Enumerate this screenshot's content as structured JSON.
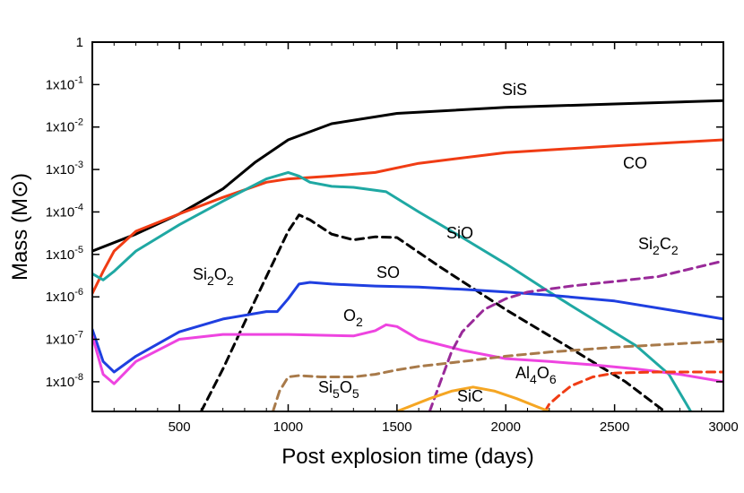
{
  "chart_data": {
    "type": "line",
    "xlabel": "Post explosion time (days)",
    "ylabel": "Mass (M⊙)",
    "xlim": [
      100,
      3000
    ],
    "ylim": [
      2e-09,
      1
    ],
    "yscale": "log",
    "grid": false,
    "x_ticks": [
      500,
      1000,
      1500,
      2000,
      2500,
      3000
    ],
    "x_tick_labels": [
      "500",
      "1000",
      "1500",
      "2000",
      "2500",
      "3000"
    ],
    "y_ticks": [
      1e-08,
      1e-07,
      1e-06,
      1e-05,
      0.0001,
      0.001,
      0.01,
      0.1,
      1
    ],
    "y_tick_labels": [
      {
        "base": "1x10",
        "exp": "-8"
      },
      {
        "base": "1x10",
        "exp": "-7"
      },
      {
        "base": "1x10",
        "exp": "-6"
      },
      {
        "base": "1x10",
        "exp": "-5"
      },
      {
        "base": "1x10",
        "exp": "-4"
      },
      {
        "base": "1x10",
        "exp": "-3"
      },
      {
        "base": "1x10",
        "exp": "-2"
      },
      {
        "base": "1x10",
        "exp": "-1"
      },
      {
        "base": "1",
        "exp": ""
      }
    ],
    "series": [
      {
        "name": "SiS",
        "color": "#000000",
        "dash": false,
        "label": [
          {
            "t": "SiS"
          }
        ],
        "x": [
          100,
          300,
          500,
          700,
          850,
          1000,
          1200,
          1500,
          2000,
          2500,
          3000
        ],
        "y": [
          1.2e-05,
          3e-05,
          9e-05,
          0.00035,
          0.0015,
          0.005,
          0.012,
          0.021,
          0.029,
          0.035,
          0.042
        ]
      },
      {
        "name": "CO",
        "color": "#f03c14",
        "dash": false,
        "label": [
          {
            "t": "CO"
          }
        ],
        "x": [
          100,
          150,
          200,
          300,
          500,
          700,
          900,
          1000,
          1200,
          1400,
          1600,
          2000,
          2500,
          3000
        ],
        "y": [
          1.2e-06,
          4e-06,
          1.2e-05,
          3.5e-05,
          9e-05,
          0.00022,
          0.0005,
          0.0006,
          0.0007,
          0.00085,
          0.0014,
          0.0025,
          0.0036,
          0.005
        ]
      },
      {
        "name": "SiO",
        "color": "#1fa8a3",
        "dash": false,
        "label": [
          {
            "t": "SiO"
          }
        ],
        "x": [
          100,
          150,
          200,
          300,
          500,
          700,
          900,
          1000,
          1050,
          1100,
          1200,
          1300,
          1450,
          1600,
          1800,
          2000,
          2200,
          2400,
          2600,
          2750,
          2850
        ],
        "y": [
          3.5e-06,
          2.5e-06,
          4e-06,
          1.2e-05,
          5e-05,
          0.00018,
          0.0006,
          0.00085,
          0.0007,
          0.0005,
          0.0004,
          0.00038,
          0.0003,
          0.0001,
          2.5e-05,
          6e-06,
          1.3e-06,
          3e-07,
          7e-08,
          1.5e-08,
          2e-09
        ]
      },
      {
        "name": "Si2O2",
        "color": "#000000",
        "dash": true,
        "label": [
          {
            "t": "Si"
          },
          {
            "t": "2",
            "sub": true
          },
          {
            "t": "O"
          },
          {
            "t": "2",
            "sub": true
          }
        ],
        "x": [
          600,
          700,
          800,
          900,
          1000,
          1050,
          1100,
          1200,
          1300,
          1400,
          1500,
          1700,
          2000,
          2300,
          2550,
          2730
        ],
        "y": [
          2e-09,
          2e-08,
          2.5e-07,
          3e-06,
          3.5e-05,
          8.5e-05,
          6.5e-05,
          3e-05,
          2.2e-05,
          2.6e-05,
          2.5e-05,
          5e-06,
          5e-07,
          6e-08,
          1e-08,
          2e-09
        ]
      },
      {
        "name": "SO",
        "color": "#1f3fe0",
        "dash": false,
        "label": [
          {
            "t": "SO"
          }
        ],
        "x": [
          100,
          150,
          200,
          300,
          500,
          700,
          900,
          950,
          1000,
          1050,
          1100,
          1200,
          1400,
          1600,
          1800,
          2000,
          2200,
          2500,
          2800,
          3000
        ],
        "y": [
          1.7e-07,
          3e-08,
          1.7e-08,
          4e-08,
          1.5e-07,
          3e-07,
          4.5e-07,
          4.5e-07,
          9e-07,
          2e-06,
          2.2e-06,
          2e-06,
          1.8e-06,
          1.7e-06,
          1.5e-06,
          1.3e-06,
          1.1e-06,
          8e-07,
          4.5e-07,
          3e-07
        ]
      },
      {
        "name": "O2",
        "color": "#ee44e0",
        "dash": false,
        "label": [
          {
            "t": "O"
          },
          {
            "t": "2",
            "sub": true
          }
        ],
        "x": [
          100,
          150,
          200,
          300,
          500,
          700,
          1000,
          1300,
          1400,
          1450,
          1500,
          1600,
          1800,
          2000,
          2200,
          2400,
          2600,
          2800,
          3000
        ],
        "y": [
          1.2e-07,
          1.5e-08,
          9e-09,
          3e-08,
          1e-07,
          1.3e-07,
          1.3e-07,
          1.2e-07,
          1.6e-07,
          2.2e-07,
          2e-07,
          1e-07,
          5.5e-08,
          3.5e-08,
          3e-08,
          2.5e-08,
          2e-08,
          1.5e-08,
          1e-08
        ]
      },
      {
        "name": "Si2C2",
        "color": "#992a99",
        "dash": true,
        "label": [
          {
            "t": "Si"
          },
          {
            "t": "2",
            "sub": true
          },
          {
            "t": "C"
          },
          {
            "t": "2",
            "sub": true
          }
        ],
        "x": [
          1650,
          1700,
          1750,
          1800,
          1900,
          2000,
          2100,
          2300,
          2500,
          2700,
          3000
        ],
        "y": [
          2e-09,
          1e-08,
          5e-08,
          1.5e-07,
          5e-07,
          9e-07,
          1.3e-06,
          1.8e-06,
          2.3e-06,
          3e-06,
          7e-06
        ]
      },
      {
        "name": "Si5O5",
        "color": "#a87a4a",
        "dash": true,
        "label": [
          {
            "t": "Si"
          },
          {
            "t": "5",
            "sub": true
          },
          {
            "t": "O"
          },
          {
            "t": "5",
            "sub": true
          }
        ],
        "x": [
          930,
          960,
          1000,
          1050,
          1150,
          1300,
          1400,
          1500,
          1600,
          1800,
          2000,
          2200,
          2500,
          3000
        ],
        "y": [
          2e-09,
          6e-09,
          1.3e-08,
          1.4e-08,
          1.3e-08,
          1.3e-08,
          1.5e-08,
          1.9e-08,
          2.3e-08,
          3e-08,
          4e-08,
          5e-08,
          6.5e-08,
          9e-08
        ]
      },
      {
        "name": "Al4O6",
        "color": "#f03c14",
        "dash": true,
        "label": [
          {
            "t": "Al"
          },
          {
            "t": "4",
            "sub": true
          },
          {
            "t": "O"
          },
          {
            "t": "6",
            "sub": true
          }
        ],
        "x": [
          2180,
          2200,
          2250,
          2300,
          2400,
          2500,
          2700,
          3000
        ],
        "y": [
          2e-09,
          3e-09,
          5e-09,
          8e-09,
          1.3e-08,
          1.6e-08,
          1.7e-08,
          1.7e-08
        ]
      },
      {
        "name": "SiC",
        "color": "#f5a623",
        "dash": false,
        "label": [
          {
            "t": "SiC"
          }
        ],
        "x": [
          1500,
          1650,
          1750,
          1850,
          1950,
          2050,
          2150,
          2200
        ],
        "y": [
          2e-09,
          4e-09,
          6e-09,
          7.5e-09,
          6e-09,
          4e-09,
          2.5e-09,
          2e-09
        ]
      }
    ]
  }
}
